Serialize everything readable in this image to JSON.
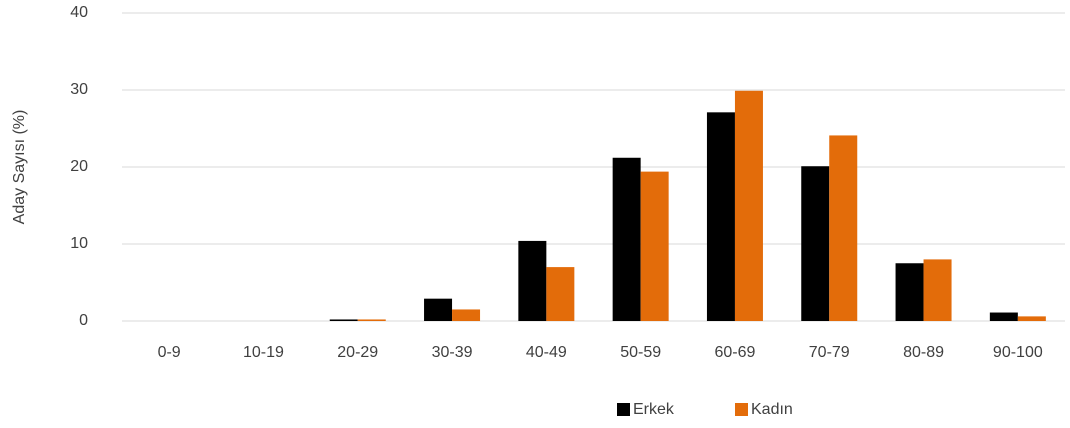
{
  "chart_data": {
    "type": "bar",
    "y_label": "Aday Sayısı (%)",
    "categories": [
      "0-9",
      "10-19",
      "20-29",
      "30-39",
      "40-49",
      "50-59",
      "60-69",
      "70-79",
      "80-89",
      "90-100"
    ],
    "series": [
      {
        "name": "Erkek",
        "color": "#000000",
        "values": [
          0,
          0,
          0.2,
          2.9,
          10.4,
          21.2,
          27.1,
          20.1,
          7.5,
          1.1
        ]
      },
      {
        "name": "Kadın",
        "color": "#e36c0a",
        "values": [
          0,
          0,
          0.2,
          1.5,
          7.0,
          19.4,
          29.9,
          24.1,
          8.0,
          0.6
        ]
      }
    ],
    "ylim": [
      0,
      40
    ],
    "yticks": [
      0,
      10,
      20,
      30,
      40
    ],
    "grid": true,
    "legend": "bottom"
  }
}
